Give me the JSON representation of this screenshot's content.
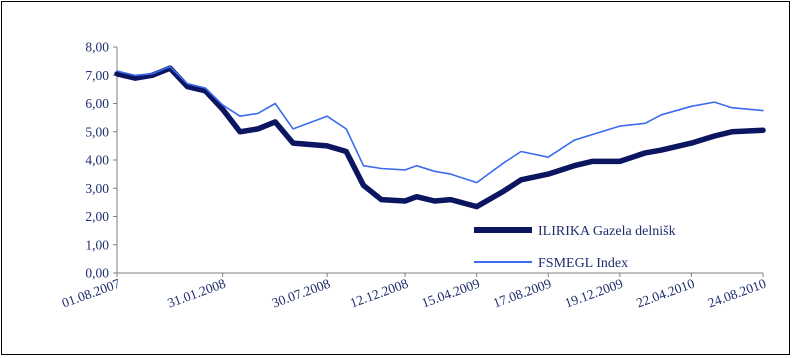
{
  "chart_data": {
    "type": "line",
    "title": "",
    "xlabel": "",
    "ylabel": "",
    "ylim": [
      0,
      8
    ],
    "y_ticks": [
      "0,00",
      "1,00",
      "2,00",
      "3,00",
      "4,00",
      "5,00",
      "6,00",
      "7,00",
      "8,00"
    ],
    "x_tick_labels": [
      "01.08.2007",
      "31.01.2008",
      "30.07.2008",
      "12.12.2008",
      "15.04.2009",
      "17.08.2009",
      "19.12.2009",
      "22.04.2010",
      "24.08.2010"
    ],
    "grid": false,
    "legend_position": "bottom-right",
    "x": [
      "01.08.2007",
      "01.09.2007",
      "01.10.2007",
      "01.11.2007",
      "01.12.2007",
      "01.01.2008",
      "31.01.2008",
      "01.03.2008",
      "01.04.2008",
      "01.05.2008",
      "01.06.2008",
      "30.07.2008",
      "01.09.2008",
      "01.10.2008",
      "01.11.2008",
      "12.12.2008",
      "01.01.2009",
      "01.02.2009",
      "01.03.2009",
      "15.04.2009",
      "01.06.2009",
      "01.07.2009",
      "17.08.2009",
      "01.10.2009",
      "01.11.2009",
      "19.12.2009",
      "01.02.2010",
      "01.03.2010",
      "22.04.2010",
      "01.06.2010",
      "01.07.2010",
      "24.08.2010"
    ],
    "series": [
      {
        "name": "ILIRIKA Gazela delnišk",
        "color": "#0b1560",
        "values": [
          7.05,
          6.9,
          7.0,
          7.25,
          6.6,
          6.45,
          5.8,
          5.0,
          5.1,
          5.35,
          4.6,
          4.5,
          4.3,
          3.1,
          2.6,
          2.55,
          2.7,
          2.55,
          2.6,
          2.35,
          2.9,
          3.3,
          3.5,
          3.8,
          3.95,
          3.95,
          4.25,
          4.35,
          4.6,
          4.85,
          5.0,
          5.05
        ]
      },
      {
        "name": "FSMEGL Index",
        "color": "#3b6cf0",
        "values": [
          7.15,
          7.0,
          7.05,
          7.3,
          6.7,
          6.55,
          5.95,
          5.55,
          5.65,
          6.0,
          5.1,
          5.55,
          5.1,
          3.8,
          3.7,
          3.65,
          3.8,
          3.6,
          3.5,
          3.2,
          3.9,
          4.3,
          4.1,
          4.7,
          4.9,
          5.2,
          5.3,
          5.6,
          5.9,
          6.05,
          5.85,
          5.75
        ]
      }
    ]
  }
}
